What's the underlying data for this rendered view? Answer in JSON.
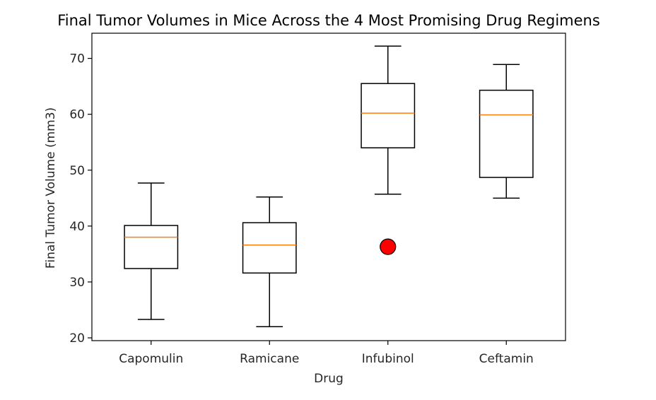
{
  "chart_data": {
    "type": "box",
    "title": "Final Tumor Volumes in Mice Across the 4 Most Promising Drug Regimens",
    "xlabel": "Drug",
    "ylabel": "Final Tumor Volume (mm3)",
    "ylim": [
      19.5,
      74.5
    ],
    "yticks": [
      20,
      30,
      40,
      50,
      60,
      70
    ],
    "grid": false,
    "categories": [
      "Capomulin",
      "Ramicane",
      "Infubinol",
      "Ceftamin"
    ],
    "boxes": [
      {
        "whisker_low": 23.3,
        "q1": 32.4,
        "median": 38.0,
        "q3": 40.1,
        "whisker_high": 47.7,
        "outliers": []
      },
      {
        "whisker_low": 22.0,
        "q1": 31.6,
        "median": 36.6,
        "q3": 40.6,
        "whisker_high": 45.2,
        "outliers": []
      },
      {
        "whisker_low": 45.7,
        "q1": 54.0,
        "median": 60.2,
        "q3": 65.5,
        "whisker_high": 72.2,
        "outliers": [
          36.3
        ]
      },
      {
        "whisker_low": 45.0,
        "q1": 48.7,
        "median": 59.9,
        "q3": 64.3,
        "whisker_high": 68.9,
        "outliers": []
      }
    ],
    "colors": {
      "box": "#000000",
      "median": "#ff7f0e",
      "outlier_fill": "#ff0000",
      "outlier_edge": "#000000"
    }
  }
}
